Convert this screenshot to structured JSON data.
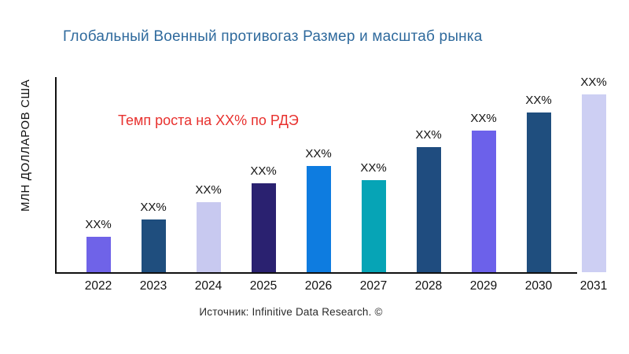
{
  "title": "Глобальный Военный противогаз Размер и масштаб рынка",
  "y_axis_label": "МЛН ДОЛЛАРОВ США",
  "annotation": "Темп роста на XX% по РДЭ",
  "source": "Источник: Infinitive Data Research. ©",
  "colors": {
    "title": "#2f6a9d",
    "annotation": "#e8312e",
    "axis": "#111111",
    "background": "#ffffff"
  },
  "chart_data": {
    "type": "bar",
    "title": "Глобальный Военный противогаз Размер и масштаб рынка",
    "xlabel": "",
    "ylabel": "МЛН ДОЛЛАРОВ США",
    "grid": false,
    "legend": false,
    "note": "no numeric y-axis ticks shown; values are placeholder XX% labels; relative bar heights in px as rendered",
    "categories": [
      "2022",
      "2023",
      "2024",
      "2025",
      "2026",
      "2027",
      "2028",
      "2029",
      "2030",
      "2031"
    ],
    "values": [
      45,
      67,
      89,
      113,
      135,
      117,
      159,
      180,
      203,
      226
    ],
    "bar_labels": [
      "XX%",
      "XX%",
      "XX%",
      "XX%",
      "XX%",
      "XX%",
      "XX%",
      "XX%",
      "XX%",
      "XX%"
    ],
    "bar_colors": [
      "#6f63e8",
      "#1f4e7e",
      "#c8c9f0",
      "#2a2170",
      "#0e7ce0",
      "#06a4b6",
      "#1f4c7f",
      "#6c61ea",
      "#1f4e7e",
      "#cdcff3"
    ],
    "annotation": "Темп роста на XX% по РДЭ"
  }
}
